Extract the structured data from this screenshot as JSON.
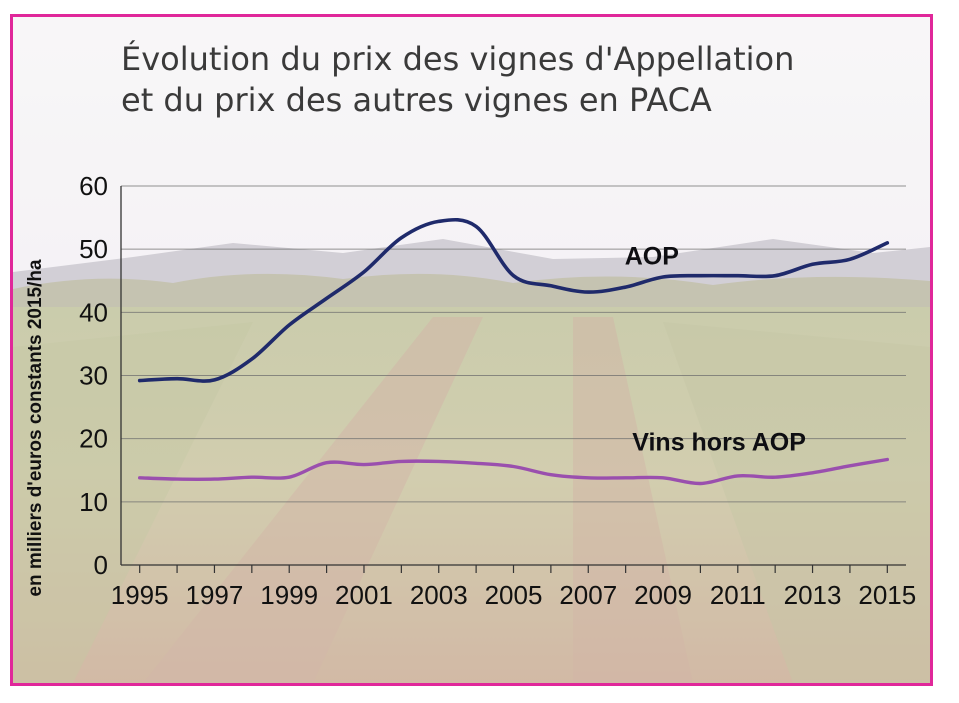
{
  "title_lines": [
    "Évolution du prix des vignes d'Appellation",
    "et du prix des autres vignes en PACA"
  ],
  "colors": {
    "border": "#e0279a",
    "aop": "#1f2a6b",
    "hors_aop": "#9a4fae",
    "grid": "#6f6f6f"
  },
  "chart_data": {
    "type": "line",
    "title": "Évolution du prix des vignes d'Appellation et du prix des autres vignes en PACA",
    "ylabel": "en milliers d'euros constants 2015/ha",
    "xlabel": "",
    "ylim": [
      0,
      60
    ],
    "yticks": [
      0,
      10,
      20,
      30,
      40,
      50,
      60
    ],
    "xticks": [
      "1995",
      "1997",
      "1999",
      "2001",
      "2003",
      "2005",
      "2007",
      "2009",
      "2011",
      "2013",
      "2015"
    ],
    "x": [
      1995,
      1996,
      1997,
      1998,
      1999,
      2000,
      2001,
      2002,
      2003,
      2004,
      2005,
      2006,
      2007,
      2008,
      2009,
      2010,
      2011,
      2012,
      2013,
      2014,
      2015
    ],
    "grid": true,
    "series": [
      {
        "name": "AOP",
        "values": [
          29.2,
          29.5,
          29.3,
          32.6,
          38.0,
          42.2,
          46.4,
          51.8,
          54.4,
          53.6,
          45.8,
          44.2,
          43.2,
          44.0,
          45.6,
          45.8,
          45.8,
          45.8,
          47.6,
          48.4,
          51.0
        ]
      },
      {
        "name": "Vins hors AOP",
        "values": [
          13.8,
          13.6,
          13.6,
          13.9,
          13.9,
          16.2,
          15.9,
          16.4,
          16.4,
          16.1,
          15.6,
          14.3,
          13.8,
          13.8,
          13.8,
          12.9,
          14.1,
          13.9,
          14.6,
          15.7,
          16.7
        ]
      }
    ]
  }
}
